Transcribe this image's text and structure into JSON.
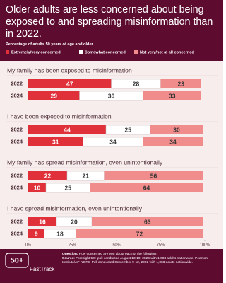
{
  "chart_data": {
    "type": "stacked-bar",
    "title": "Older adults are less concerned about being exposed to and spreading misinformation than in 2022.",
    "subtitle": "Percentage of adults 50 years of age and older",
    "series": [
      {
        "name": "Extremely/very concerned",
        "color": "#e0313b"
      },
      {
        "name": "Somewhat concerned",
        "color": "#ffffff"
      },
      {
        "name": "Not very/not at all concerned",
        "color": "#f08c8c"
      }
    ],
    "groups": [
      {
        "title": "My family has been exposed to misinformation",
        "categories": [
          "2022",
          "2024"
        ],
        "values": [
          [
            47,
            28,
            23
          ],
          [
            29,
            36,
            33
          ]
        ]
      },
      {
        "title": "I have been exposed to misinformation",
        "categories": [
          "2022",
          "2024"
        ],
        "values": [
          [
            44,
            25,
            30
          ],
          [
            31,
            34,
            34
          ]
        ]
      },
      {
        "title": "My family has spread misinformation, even unintentionally",
        "categories": [
          "2022",
          "2024"
        ],
        "values": [
          [
            22,
            21,
            56
          ],
          [
            10,
            25,
            64
          ]
        ]
      },
      {
        "title": "I have spread misinformation, even unintentionally",
        "categories": [
          "2022",
          "2024"
        ],
        "values": [
          [
            16,
            20,
            63
          ],
          [
            9,
            18,
            72
          ]
        ]
      }
    ],
    "xlim": [
      0,
      100
    ],
    "xticks": [
      {
        "value": 0,
        "label": "0%"
      },
      {
        "value": 25,
        "label": "25%"
      },
      {
        "value": 50,
        "label": "50%"
      },
      {
        "value": 75,
        "label": "75%"
      },
      {
        "value": 100,
        "label": "100%"
      }
    ],
    "logo": {
      "mark": "50+",
      "name": "FastTrack"
    },
    "question_label": "Question:",
    "question": "How concerned are you about each of the following?",
    "source_label": "Source:",
    "source": "Foresight 50+ poll conducted August 13-19, 2024 with 1,003 adults nationwide. Pearson Institute/AP-NORC Poll conducted September 9-12, 2022 with 1,003 adults nationwide."
  }
}
